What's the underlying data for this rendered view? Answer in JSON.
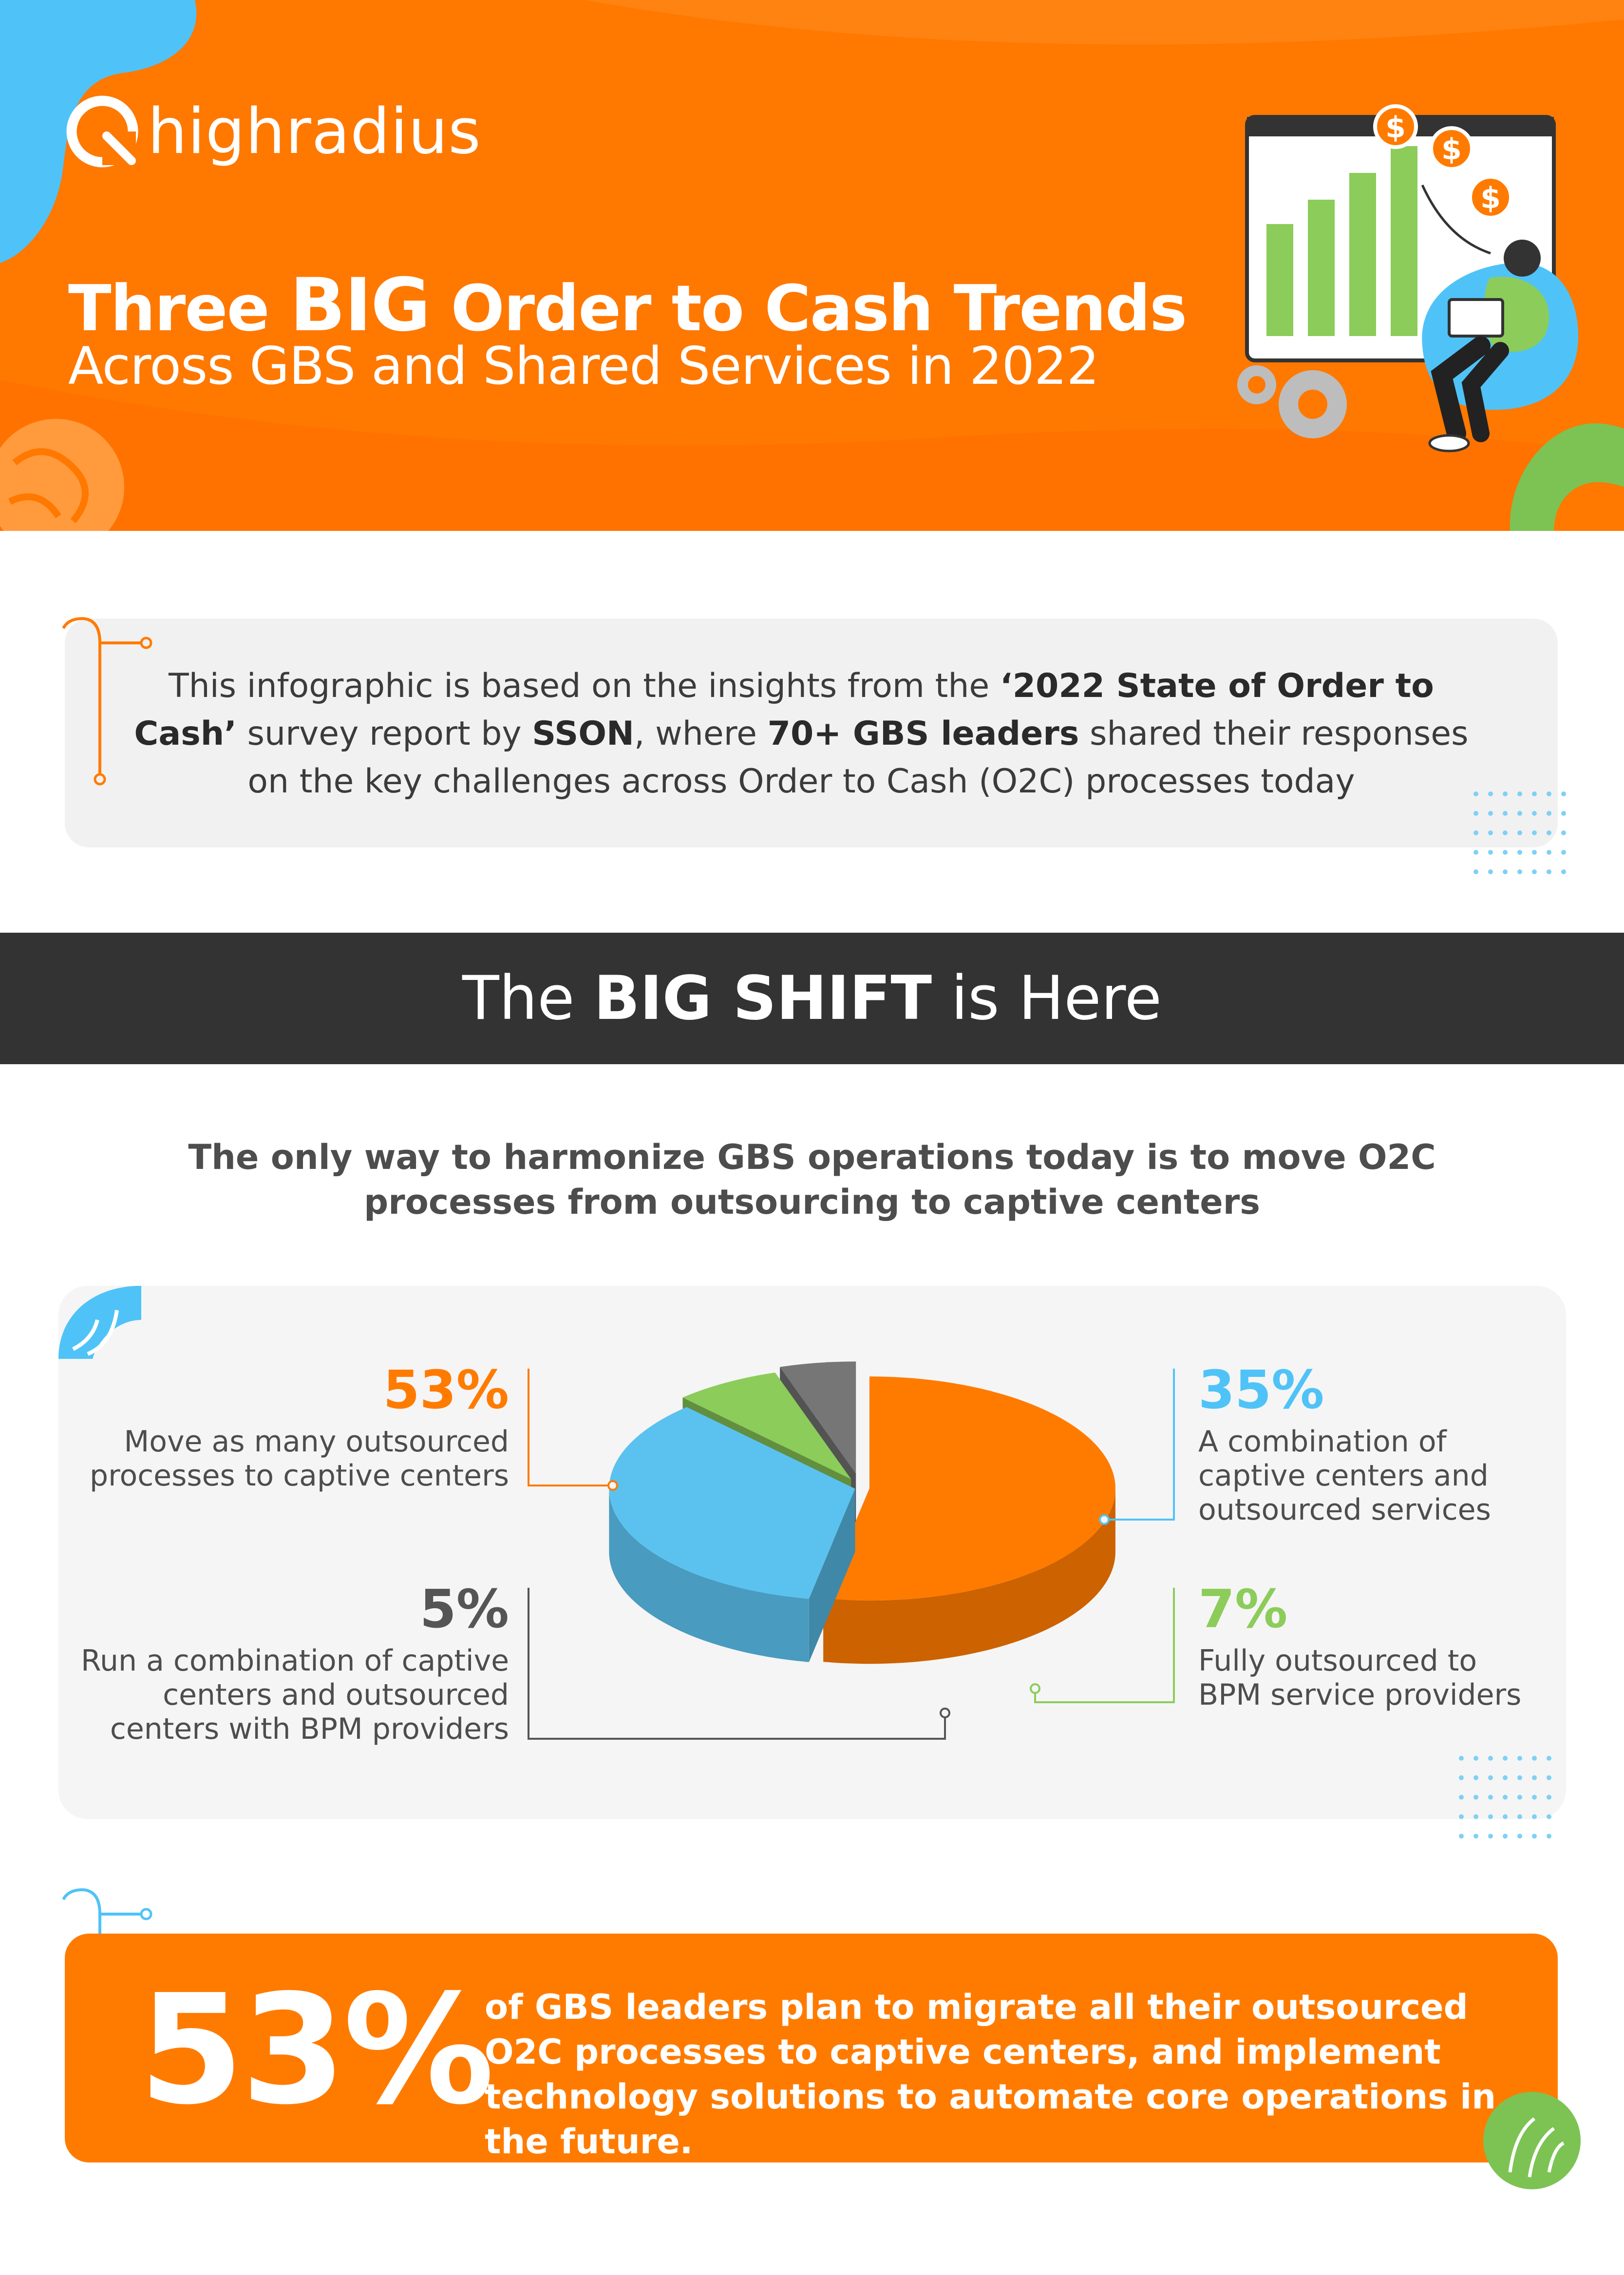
{
  "brand": {
    "name": "highradius",
    "orange": "#ff7b00",
    "blue": "#5bc2ef",
    "green": "#8ccc5a",
    "gray": "#767676"
  },
  "header": {
    "title_pre": "Three ",
    "title_big": "BIG",
    "title_post": " Order to Cash Trends",
    "subtitle": "Across GBS and Shared Services in 2022"
  },
  "intro": {
    "t1": "This infographic is based on the insights from the ",
    "b1": "‘2022 State of Order to Cash’",
    "t2": " survey report by ",
    "b2": "SSON",
    "t3": ", where ",
    "b3": "70+ GBS leaders",
    "t4": " shared their responses on the key challenges across Order to Cash (O2C) processes today"
  },
  "section": {
    "pre": "The ",
    "bold": "BIG SHIFT",
    "post": " is Here",
    "subtitle": "The only way to harmonize GBS operations today is to move O2C processes from outsourcing to captive centers"
  },
  "chart_data": {
    "type": "pie",
    "style": "3d-exploded",
    "units": "percent",
    "slices": [
      {
        "label": "Move as many outsourced processes to captive centers",
        "value": 53,
        "display": "53%",
        "color": "#ff7b00"
      },
      {
        "label": "A combination of captive centers and outsourced services",
        "value": 35,
        "display": "35%",
        "color": "#5bc2ef"
      },
      {
        "label": "Fully outsourced to BPM service providers",
        "value": 7,
        "display": "7%",
        "color": "#8ccc5a"
      },
      {
        "label": "Run a combination of captive centers and outsourced centers with BPM providers",
        "value": 5,
        "display": "5%",
        "color": "#767676"
      }
    ]
  },
  "callout": {
    "pct": "53%",
    "text": "of GBS leaders plan to migrate all their outsourced O2C processes to captive centers, and implement technology solutions to automate core operations in the future."
  }
}
